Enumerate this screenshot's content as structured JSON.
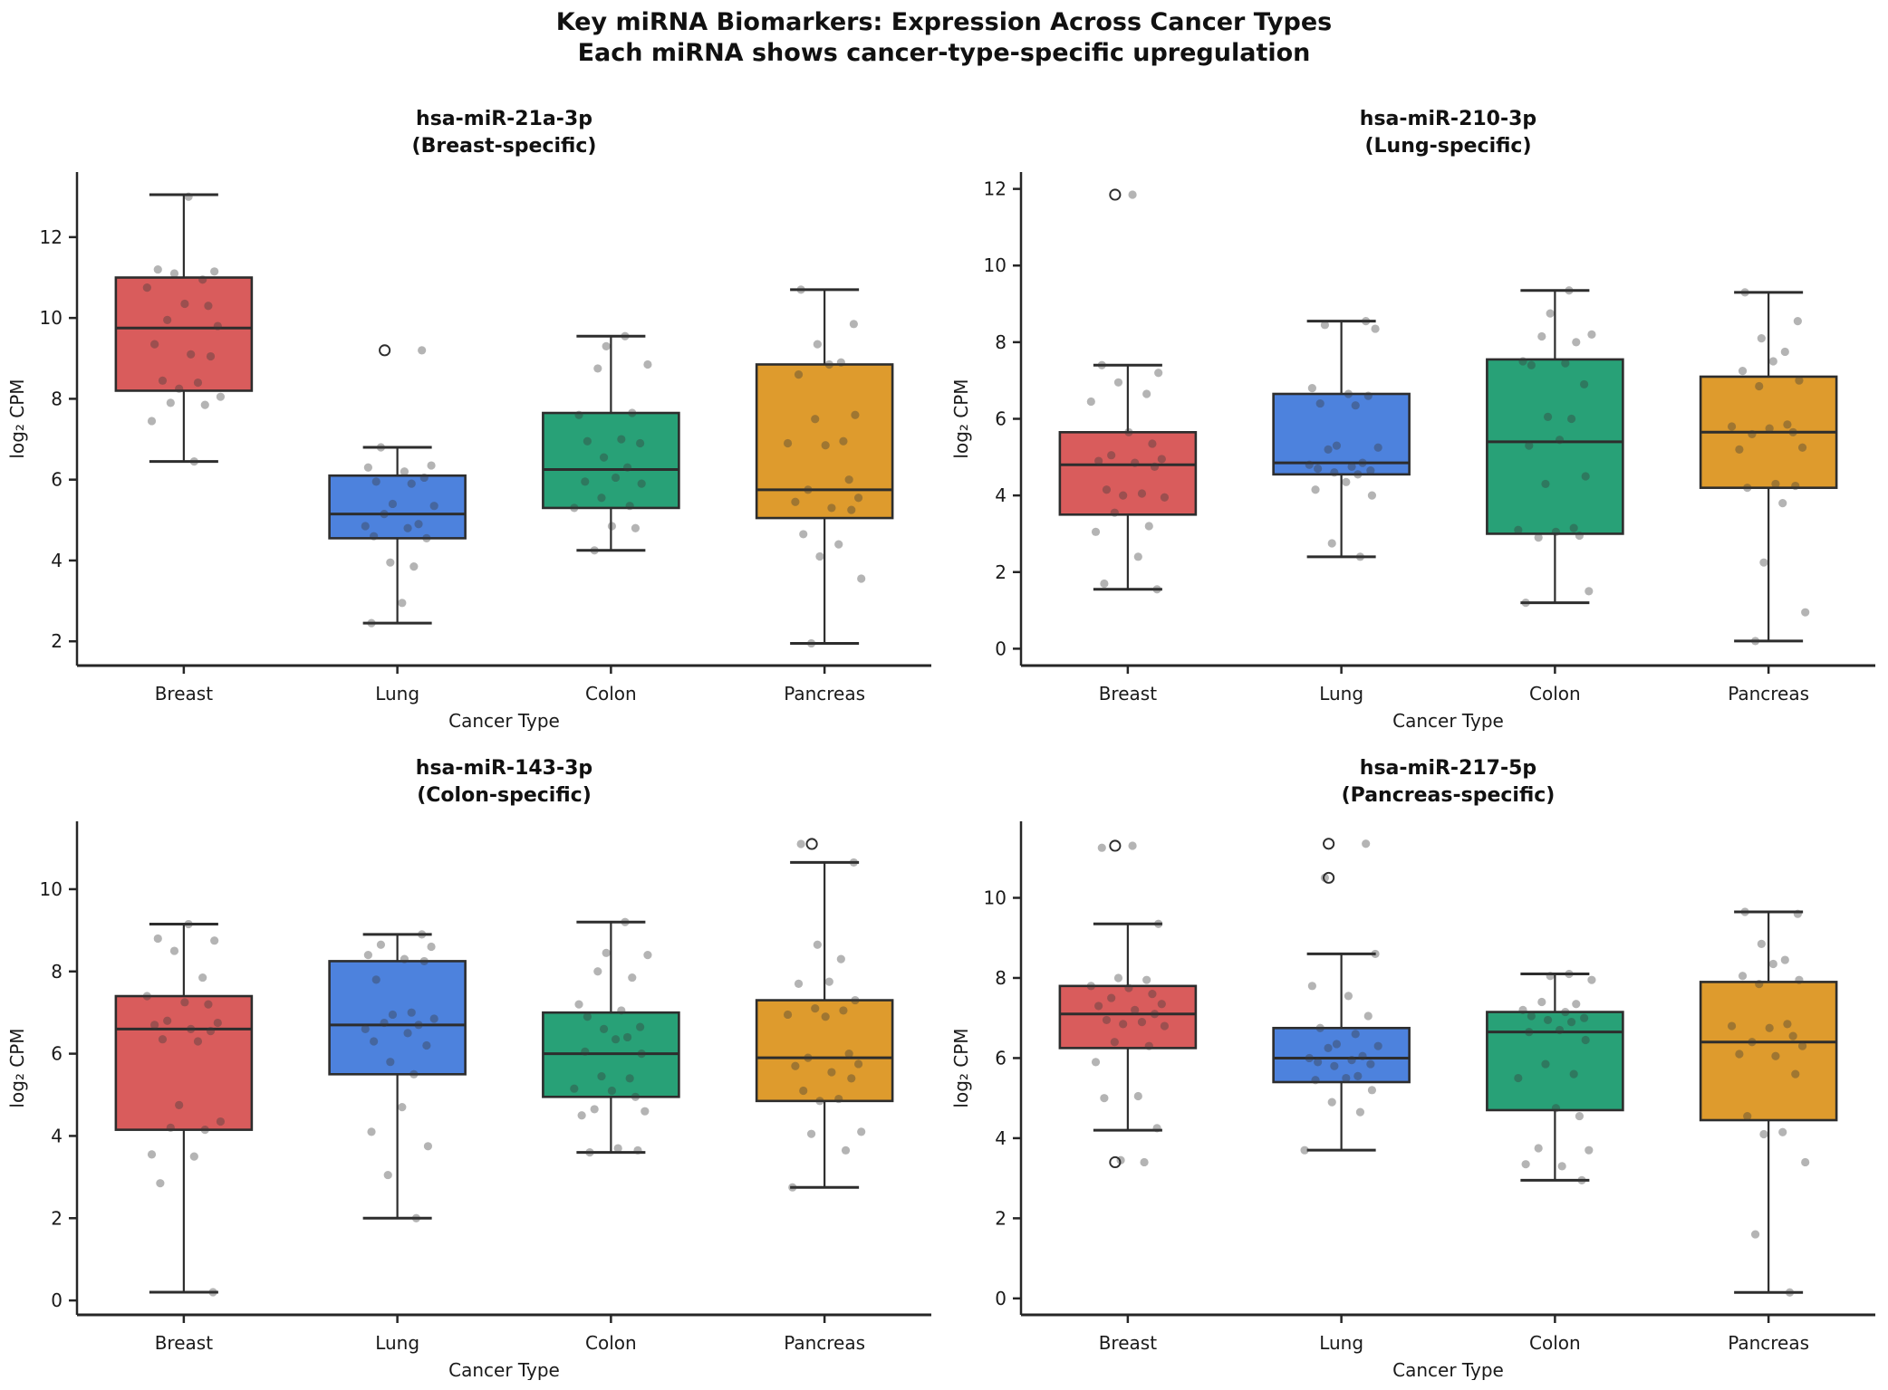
{
  "page": {
    "title_line1": "Key miRNA Biomarkers: Expression Across Cancer Types",
    "title_line2": "Each miRNA shows cancer-type-specific upregulation"
  },
  "colors": {
    "breast_red": "#d95c5c",
    "lung_blue": "#4d82dd",
    "colon_green": "#28a177",
    "pancreas_orange": "#de9b2d",
    "box_edge": "#2d2d2d",
    "axis": "#262626",
    "tick_label": "#1a1a1a",
    "point_gray": "#3a3a3a"
  },
  "chart_data": [
    {
      "type": "box",
      "title_line1": "hsa-miR-21a-3p",
      "title_line2": "(Breast-specific)",
      "xlabel": "Cancer Type",
      "ylabel": "log₂ CPM",
      "categories": [
        "Breast",
        "Lung",
        "Colon",
        "Pancreas"
      ],
      "box_colors": [
        "#d95c5c",
        "#4d82dd",
        "#28a177",
        "#de9b2d"
      ],
      "ylim": [
        1.4,
        13.61
      ],
      "yticks": [
        2,
        4,
        6,
        8,
        10,
        12
      ],
      "grid": false,
      "boxes": [
        {
          "category": "Breast",
          "whisker_low": 6.45,
          "q1": 8.2,
          "median": 9.75,
          "q3": 11.0,
          "whisker_high": 13.05,
          "outliers": [],
          "points": [
            13.0,
            11.2,
            11.15,
            11.1,
            10.95,
            10.75,
            10.35,
            10.3,
            9.95,
            9.8,
            9.35,
            9.1,
            9.05,
            8.45,
            8.4,
            8.25,
            8.05,
            7.9,
            7.85,
            7.45,
            6.45
          ]
        },
        {
          "category": "Lung",
          "whisker_low": 2.45,
          "q1": 4.55,
          "median": 5.15,
          "q3": 6.1,
          "whisker_high": 6.8,
          "outliers": [
            9.2
          ],
          "points": [
            9.2,
            6.8,
            6.35,
            6.3,
            6.2,
            6.05,
            5.95,
            5.9,
            5.4,
            5.35,
            5.15,
            4.9,
            4.85,
            4.8,
            4.6,
            4.55,
            3.95,
            3.85,
            2.95,
            2.45
          ]
        },
        {
          "category": "Colon",
          "whisker_low": 4.25,
          "q1": 5.3,
          "median": 6.25,
          "q3": 7.65,
          "whisker_high": 9.55,
          "outliers": [],
          "points": [
            9.55,
            9.3,
            8.85,
            8.75,
            7.65,
            7.6,
            7.0,
            6.95,
            6.9,
            6.55,
            6.3,
            6.05,
            5.95,
            5.9,
            5.55,
            5.35,
            5.3,
            4.85,
            4.8,
            4.25
          ]
        },
        {
          "category": "Pancreas",
          "whisker_low": 1.95,
          "q1": 5.05,
          "median": 5.75,
          "q3": 8.85,
          "whisker_high": 10.7,
          "outliers": [],
          "points": [
            10.7,
            9.85,
            9.35,
            8.9,
            8.85,
            8.6,
            7.6,
            7.5,
            6.95,
            6.9,
            6.85,
            6.0,
            5.75,
            5.55,
            5.45,
            5.3,
            5.25,
            4.65,
            4.4,
            4.1,
            3.55,
            1.95
          ]
        }
      ]
    },
    {
      "type": "box",
      "title_line1": "hsa-miR-210-3p",
      "title_line2": "(Lung-specific)",
      "xlabel": "Cancer Type",
      "ylabel": "log₂ CPM",
      "categories": [
        "Breast",
        "Lung",
        "Colon",
        "Pancreas"
      ],
      "box_colors": [
        "#d95c5c",
        "#4d82dd",
        "#28a177",
        "#de9b2d"
      ],
      "ylim": [
        -0.44,
        12.44
      ],
      "yticks": [
        0,
        2,
        4,
        6,
        8,
        10,
        12
      ],
      "grid": false,
      "boxes": [
        {
          "category": "Breast",
          "whisker_low": 1.55,
          "q1": 3.5,
          "median": 4.8,
          "q3": 5.65,
          "whisker_high": 7.4,
          "outliers": [
            11.85
          ],
          "points": [
            11.85,
            7.4,
            7.2,
            6.95,
            6.65,
            6.45,
            5.65,
            5.35,
            5.05,
            4.95,
            4.9,
            4.85,
            4.75,
            4.15,
            4.05,
            4.0,
            3.95,
            3.55,
            3.2,
            3.05,
            2.4,
            1.7,
            1.55
          ]
        },
        {
          "category": "Lung",
          "whisker_low": 2.4,
          "q1": 4.55,
          "median": 4.85,
          "q3": 6.65,
          "whisker_high": 8.55,
          "outliers": [],
          "points": [
            8.55,
            8.45,
            8.35,
            6.8,
            6.65,
            6.6,
            6.4,
            6.35,
            5.3,
            5.25,
            5.2,
            4.85,
            4.8,
            4.75,
            4.7,
            4.65,
            4.6,
            4.55,
            4.35,
            4.15,
            4.0,
            2.75,
            2.4
          ]
        },
        {
          "category": "Colon",
          "whisker_low": 1.2,
          "q1": 3.0,
          "median": 5.4,
          "q3": 7.55,
          "whisker_high": 9.35,
          "outliers": [],
          "points": [
            9.35,
            8.75,
            8.2,
            8.15,
            8.0,
            7.5,
            7.45,
            7.4,
            6.9,
            6.05,
            6.0,
            5.45,
            5.3,
            4.5,
            4.3,
            3.15,
            3.1,
            3.05,
            2.95,
            2.9,
            1.5,
            1.2
          ]
        },
        {
          "category": "Pancreas",
          "whisker_low": 0.2,
          "q1": 4.2,
          "median": 5.65,
          "q3": 7.1,
          "whisker_high": 9.3,
          "outliers": [],
          "points": [
            9.3,
            8.55,
            8.1,
            7.75,
            7.5,
            7.25,
            7.0,
            6.85,
            5.85,
            5.8,
            5.75,
            5.65,
            5.6,
            5.25,
            5.2,
            4.3,
            4.25,
            4.2,
            3.8,
            2.25,
            0.95,
            0.2
          ]
        }
      ]
    },
    {
      "type": "box",
      "title_line1": "hsa-miR-143-3p",
      "title_line2": "(Colon-specific)",
      "xlabel": "Cancer Type",
      "ylabel": "log₂ CPM",
      "categories": [
        "Breast",
        "Lung",
        "Colon",
        "Pancreas"
      ],
      "box_colors": [
        "#d95c5c",
        "#4d82dd",
        "#28a177",
        "#de9b2d"
      ],
      "ylim": [
        -0.35,
        11.65
      ],
      "yticks": [
        0,
        2,
        4,
        6,
        8,
        10
      ],
      "grid": false,
      "boxes": [
        {
          "category": "Breast",
          "whisker_low": 0.2,
          "q1": 4.15,
          "median": 6.6,
          "q3": 7.4,
          "whisker_high": 9.15,
          "outliers": [],
          "points": [
            9.15,
            8.8,
            8.75,
            8.5,
            7.85,
            7.4,
            7.25,
            7.2,
            6.8,
            6.75,
            6.7,
            6.6,
            6.55,
            6.35,
            6.3,
            4.75,
            4.35,
            4.2,
            4.15,
            3.55,
            3.5,
            2.85,
            0.2
          ]
        },
        {
          "category": "Lung",
          "whisker_low": 2.0,
          "q1": 5.5,
          "median": 6.7,
          "q3": 8.25,
          "whisker_high": 8.9,
          "outliers": [],
          "points": [
            8.9,
            8.65,
            8.6,
            8.4,
            8.3,
            8.25,
            7.8,
            7.0,
            6.95,
            6.85,
            6.75,
            6.7,
            6.6,
            6.5,
            6.3,
            6.2,
            5.8,
            5.5,
            4.7,
            4.1,
            3.75,
            3.05,
            2.0
          ]
        },
        {
          "category": "Colon",
          "whisker_low": 3.6,
          "q1": 4.95,
          "median": 6.0,
          "q3": 7.0,
          "whisker_high": 9.2,
          "outliers": [],
          "points": [
            9.2,
            8.45,
            8.4,
            8.0,
            7.85,
            7.2,
            7.05,
            6.9,
            6.65,
            6.6,
            6.4,
            6.35,
            6.05,
            6.0,
            5.45,
            5.4,
            5.15,
            5.1,
            4.95,
            4.65,
            4.6,
            4.5,
            3.7,
            3.65,
            3.6
          ]
        },
        {
          "category": "Pancreas",
          "whisker_low": 2.75,
          "q1": 4.85,
          "median": 5.9,
          "q3": 7.3,
          "whisker_high": 10.65,
          "outliers": [
            11.1
          ],
          "points": [
            11.1,
            10.65,
            8.65,
            8.3,
            7.75,
            7.7,
            7.3,
            7.1,
            7.05,
            6.95,
            6.9,
            6.0,
            5.9,
            5.75,
            5.7,
            5.55,
            5.4,
            5.1,
            4.9,
            4.85,
            4.1,
            4.05,
            3.65,
            2.75
          ]
        }
      ]
    },
    {
      "type": "box",
      "title_line1": "hsa-miR-217-5p",
      "title_line2": "(Pancreas-specific)",
      "xlabel": "Cancer Type",
      "ylabel": "log₂ CPM",
      "categories": [
        "Breast",
        "Lung",
        "Colon",
        "Pancreas"
      ],
      "box_colors": [
        "#d95c5c",
        "#4d82dd",
        "#28a177",
        "#de9b2d"
      ],
      "ylim": [
        -0.41,
        11.91
      ],
      "yticks": [
        0,
        2,
        4,
        6,
        8,
        10
      ],
      "grid": false,
      "boxes": [
        {
          "category": "Breast",
          "whisker_low": 4.2,
          "q1": 6.25,
          "median": 7.1,
          "q3": 7.8,
          "whisker_high": 9.35,
          "outliers": [
            11.3,
            3.4
          ],
          "points": [
            11.3,
            11.25,
            9.35,
            8.0,
            7.95,
            7.8,
            7.75,
            7.6,
            7.5,
            7.35,
            7.3,
            7.2,
            7.1,
            6.95,
            6.9,
            6.85,
            6.8,
            6.4,
            6.3,
            5.9,
            5.05,
            5.0,
            4.25,
            3.45,
            3.4
          ]
        },
        {
          "category": "Lung",
          "whisker_low": 3.7,
          "q1": 5.4,
          "median": 6.0,
          "q3": 6.75,
          "whisker_high": 8.6,
          "outliers": [
            11.35,
            10.5
          ],
          "points": [
            11.35,
            10.5,
            8.6,
            7.8,
            7.55,
            7.05,
            6.75,
            6.6,
            6.35,
            6.3,
            6.25,
            6.05,
            6.0,
            5.95,
            5.9,
            5.85,
            5.8,
            5.55,
            5.5,
            5.45,
            5.2,
            4.9,
            4.65,
            3.7
          ]
        },
        {
          "category": "Colon",
          "whisker_low": 2.95,
          "q1": 4.7,
          "median": 6.65,
          "q3": 7.15,
          "whisker_high": 8.1,
          "outliers": [],
          "points": [
            8.1,
            8.05,
            7.95,
            7.4,
            7.35,
            7.2,
            7.15,
            7.05,
            7.0,
            6.95,
            6.9,
            6.7,
            6.65,
            6.45,
            5.85,
            5.6,
            5.5,
            4.75,
            4.55,
            3.75,
            3.7,
            3.35,
            3.3,
            2.95
          ]
        },
        {
          "category": "Pancreas",
          "whisker_low": 0.15,
          "q1": 4.45,
          "median": 6.4,
          "q3": 7.9,
          "whisker_high": 9.65,
          "outliers": [],
          "points": [
            9.65,
            9.6,
            8.85,
            8.45,
            8.35,
            8.05,
            7.95,
            7.85,
            6.85,
            6.8,
            6.75,
            6.55,
            6.4,
            6.3,
            6.1,
            6.05,
            5.6,
            4.55,
            4.15,
            4.1,
            3.4,
            1.6,
            0.15
          ]
        }
      ]
    }
  ]
}
